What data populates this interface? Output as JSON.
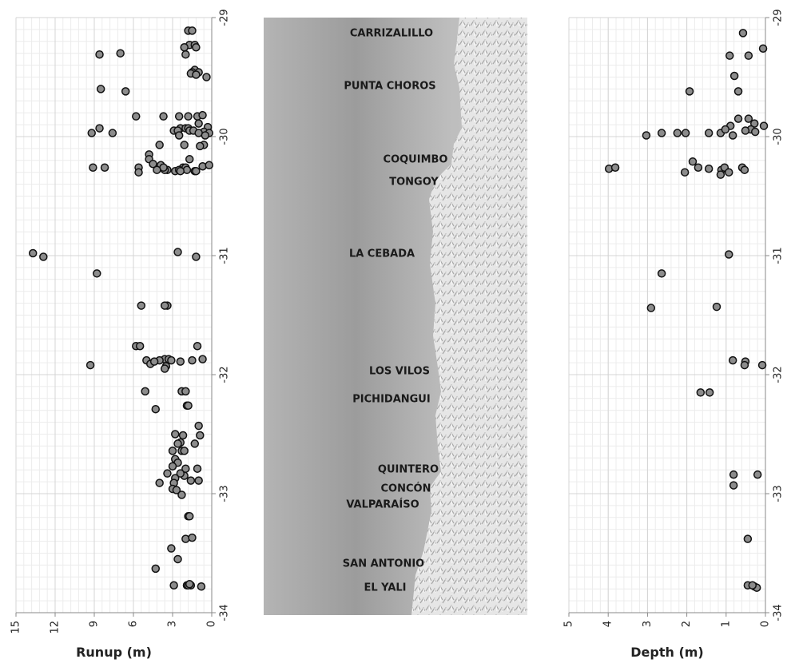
{
  "chart_data": [
    {
      "type": "scatter",
      "x_label": "Runup (m)",
      "color": "#8c8c8c",
      "grid": true,
      "xlim": [
        15,
        0
      ],
      "xticks": [
        15,
        12,
        9,
        6,
        3,
        0
      ],
      "ylim": [
        -34,
        -29
      ],
      "yticks": [
        -29,
        -30,
        -31,
        -32,
        -33,
        -34
      ],
      "x": [
        1.8,
        1.5,
        1.7,
        1.3,
        2.1,
        1.2,
        2.0,
        8.6,
        7.0,
        1.3,
        1.5,
        1.6,
        1.0,
        1.2,
        0.4,
        8.5,
        6.6,
        1.1,
        0.7,
        5.8,
        3.7,
        2.5,
        1.8,
        1.0,
        2.4,
        2.0,
        1.8,
        8.6,
        9.2,
        7.6,
        2.9,
        1.7,
        0.3,
        2.6,
        2.5,
        0.6,
        1.4,
        1.0,
        0.2,
        0.5,
        0.6,
        2.1,
        4.0,
        0.9,
        4.8,
        1.7,
        4.8,
        4.5,
        3.9,
        0.7,
        2.2,
        5.6,
        9.1,
        8.2,
        5.6,
        2.0,
        1.9,
        2.8,
        3.4,
        2.5,
        3.6,
        3.7,
        0.2,
        4.2,
        2.4,
        1.3,
        1.2,
        13.7,
        12.9,
        2.6,
        1.2,
        8.8,
        5.4,
        3.4,
        3.6,
        5.8,
        5.5,
        1.1,
        3.6,
        3.3,
        4.0,
        3.1,
        2.4,
        1.5,
        0.7,
        5.0,
        4.7,
        9.3,
        3.5,
        4.4,
        3.6,
        5.1,
        2.3,
        2.0,
        1.9,
        1.8,
        4.3,
        1.0,
        0.9,
        2.8,
        2.2,
        2.4,
        2.6,
        2.3,
        1.3,
        3.0,
        2.1,
        2.8,
        2.6,
        3.0,
        1.1,
        2.0,
        3.4,
        2.1,
        1.6,
        1.0,
        2.4,
        2.8,
        4.0,
        2.9,
        3.0,
        2.7,
        2.3,
        1.8,
        1.7,
        2.0,
        1.5,
        3.1,
        2.6,
        4.3,
        2.9,
        1.9,
        1.6,
        1.8,
        1.7,
        0.8
      ],
      "y": [
        -29.11,
        -29.11,
        -29.23,
        -29.23,
        -29.25,
        -29.25,
        -29.31,
        -29.31,
        -29.3,
        -29.44,
        -29.46,
        -29.47,
        -29.46,
        -29.48,
        -29.5,
        -29.6,
        -29.62,
        -29.83,
        -29.82,
        -29.83,
        -29.83,
        -29.83,
        -29.83,
        -29.89,
        -29.93,
        -29.93,
        -29.93,
        -29.93,
        -29.97,
        -29.97,
        -29.95,
        -29.95,
        -29.92,
        -29.95,
        -29.99,
        -29.96,
        -29.95,
        -29.97,
        -29.97,
        -29.99,
        -30.07,
        -30.07,
        -30.07,
        -30.08,
        -30.15,
        -30.19,
        -30.19,
        -30.23,
        -30.24,
        -30.25,
        -30.26,
        -30.26,
        -30.26,
        -30.26,
        -30.3,
        -30.26,
        -30.28,
        -30.29,
        -30.28,
        -30.28,
        -30.28,
        -30.26,
        -30.24,
        -30.28,
        -30.29,
        -30.29,
        -30.29,
        -30.98,
        -31.01,
        -30.97,
        -31.01,
        -31.15,
        -31.42,
        -31.42,
        -31.42,
        -31.76,
        -31.76,
        -31.76,
        -31.87,
        -31.87,
        -31.88,
        -31.88,
        -31.89,
        -31.88,
        -31.87,
        -31.88,
        -31.91,
        -31.92,
        -31.93,
        -31.89,
        -31.95,
        -32.14,
        -32.14,
        -32.14,
        -32.26,
        -32.26,
        -32.29,
        -32.43,
        -32.51,
        -32.5,
        -32.51,
        -32.57,
        -32.58,
        -32.64,
        -32.58,
        -32.64,
        -32.64,
        -32.71,
        -32.74,
        -32.77,
        -32.79,
        -32.79,
        -32.83,
        -32.85,
        -32.89,
        -32.89,
        -32.83,
        -32.87,
        -32.91,
        -32.91,
        -32.96,
        -32.97,
        -33.01,
        -33.19,
        -33.19,
        -33.38,
        -33.37,
        -33.46,
        -33.55,
        -33.63,
        -33.77,
        -33.77,
        -33.77,
        -33.77,
        -33.76,
        -33.78
      ]
    },
    {
      "type": "scatter",
      "x_label": "Depth (m)",
      "color": "#8c8c8c",
      "grid": true,
      "xlim": [
        5,
        0
      ],
      "xticks": [
        5,
        4,
        3,
        2,
        1,
        0
      ],
      "ylim": [
        -34,
        -29
      ],
      "yticks": [
        -29,
        -30,
        -31,
        -32,
        -33,
        -34
      ],
      "x": [
        0.57,
        0.06,
        0.91,
        0.43,
        0.79,
        1.93,
        0.69,
        0.69,
        0.43,
        0.89,
        0.28,
        0.04,
        0.37,
        0.26,
        3.03,
        2.64,
        2.24,
        2.03,
        1.44,
        1.14,
        1.02,
        0.83,
        0.51,
        1.85,
        1.71,
        1.44,
        2.05,
        3.98,
        3.82,
        1.12,
        1.04,
        0.93,
        1.14,
        0.59,
        0.53,
        0.93,
        2.64,
        2.91,
        1.24,
        0.83,
        0.51,
        0.53,
        0.08,
        1.65,
        1.42,
        0.81,
        0.2,
        0.81,
        0.45,
        0.45,
        0.28,
        0.22,
        0.33
      ],
      "y": [
        -29.13,
        -29.26,
        -29.32,
        -29.32,
        -29.49,
        -29.62,
        -29.62,
        -29.85,
        -29.85,
        -29.91,
        -29.89,
        -29.91,
        -29.94,
        -29.96,
        -29.99,
        -29.97,
        -29.97,
        -29.97,
        -29.97,
        -29.97,
        -29.94,
        -29.99,
        -29.95,
        -30.21,
        -30.26,
        -30.27,
        -30.3,
        -30.27,
        -30.26,
        -30.28,
        -30.26,
        -30.3,
        -30.32,
        -30.26,
        -30.28,
        -30.99,
        -31.15,
        -31.44,
        -31.43,
        -31.88,
        -31.89,
        -31.92,
        -31.92,
        -32.15,
        -32.15,
        -32.84,
        -32.84,
        -32.93,
        -33.38,
        -33.77,
        -33.78,
        -33.79,
        -33.77
      ]
    }
  ],
  "map": {
    "labels": [
      "CARRIZALILLO",
      "PUNTA CHOROS",
      "COQUIMBO",
      "TONGOY",
      "LA CEBADA",
      "LOS VILOS",
      "PICHIDANGUI",
      "QUINTERO",
      "CONCÓN",
      "VALPARAÍSO",
      "SAN ANTONIO",
      "EL YALI"
    ]
  }
}
